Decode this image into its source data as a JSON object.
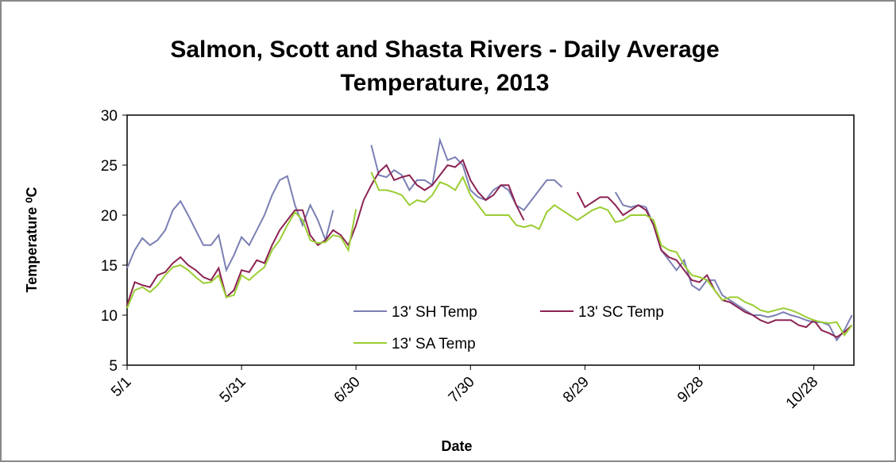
{
  "chart_data": {
    "type": "line",
    "title_lines": [
      "Salmon, Scott and Shasta Rivers - Daily Average",
      "Temperature, 2013"
    ],
    "x_label": "Date",
    "y_label": "Temperature ⁰C",
    "x": [
      0,
      2,
      4,
      6,
      8,
      10,
      12,
      14,
      16,
      18,
      20,
      22,
      24,
      26,
      28,
      30,
      32,
      34,
      36,
      38,
      40,
      42,
      44,
      46,
      48,
      50,
      52,
      54,
      56,
      58,
      60,
      62,
      64,
      66,
      68,
      70,
      72,
      74,
      76,
      78,
      80,
      82,
      84,
      86,
      88,
      90,
      92,
      94,
      96,
      98,
      100,
      102,
      104,
      106,
      108,
      110,
      112,
      114,
      116,
      118,
      120,
      122,
      124,
      126,
      128,
      130,
      132,
      134,
      136,
      138,
      140,
      142,
      144,
      146,
      148,
      150,
      152,
      154,
      156,
      158,
      160,
      162,
      164,
      166,
      168,
      170,
      172,
      174,
      176,
      178,
      180,
      182,
      184,
      186,
      188,
      190
    ],
    "xlim": [
      0,
      190.5
    ],
    "xticks": [
      {
        "value": 0,
        "label": "5/1"
      },
      {
        "value": 30,
        "label": "5/31"
      },
      {
        "value": 60,
        "label": "6/30"
      },
      {
        "value": 90,
        "label": "7/30"
      },
      {
        "value": 120,
        "label": "8/29"
      },
      {
        "value": 150,
        "label": "9/28"
      },
      {
        "value": 180,
        "label": "10/28"
      }
    ],
    "ylim": [
      5,
      30
    ],
    "yticks": [
      5,
      10,
      15,
      20,
      25,
      30
    ],
    "grid": false,
    "series": [
      {
        "name": "13' SH Temp",
        "color": "#7b7fb3",
        "values": [
          14.7,
          16.5,
          17.7,
          17,
          17.5,
          18.5,
          20.5,
          21.4,
          20,
          18.5,
          17,
          17,
          18,
          14.5,
          16,
          17.8,
          17,
          18.5,
          20,
          22,
          23.5,
          23.9,
          21,
          19,
          21,
          19.5,
          17.5,
          20.5,
          null,
          null,
          null,
          null,
          27,
          24,
          23.8,
          24.5,
          24,
          22.5,
          23.5,
          23.5,
          23,
          27.5,
          25.5,
          25.8,
          25,
          22.5,
          21.8,
          21.5,
          22.5,
          23,
          22.5,
          21,
          20.5,
          21.5,
          22.5,
          23.5,
          23.5,
          22.8,
          null,
          null,
          null,
          null,
          null,
          null,
          22.3,
          21,
          20.8,
          21,
          20.8,
          19,
          16.5,
          15.5,
          14.5,
          15.5,
          13,
          12.5,
          13.5,
          13.5,
          12,
          11.5,
          11,
          10.5,
          10,
          10,
          9.8,
          10,
          10.3,
          10,
          9.8,
          9.5,
          9.3,
          9.3,
          9,
          7.5,
          8.5,
          10
        ]
      },
      {
        "name": "13' SC Temp",
        "color": "#8b2252",
        "values": [
          11,
          13.3,
          13,
          12.8,
          14,
          14.3,
          15.2,
          15.8,
          15,
          14.5,
          13.8,
          13.5,
          14.7,
          11.8,
          12.5,
          14.5,
          14.3,
          15.5,
          15.2,
          17,
          18.5,
          19.5,
          20.5,
          20.5,
          18,
          17,
          17.5,
          18.5,
          18,
          17,
          19,
          21.5,
          23,
          24.3,
          25,
          23.5,
          23.8,
          24,
          23,
          22.5,
          23,
          24,
          25,
          24.8,
          25.5,
          23.5,
          22.3,
          21.5,
          22,
          23,
          23,
          21,
          19.5,
          null,
          null,
          null,
          null,
          null,
          null,
          22.3,
          20.8,
          21.3,
          21.8,
          21.8,
          21,
          20,
          20.5,
          21,
          20.5,
          19,
          16.5,
          15.8,
          15.5,
          14.5,
          13.5,
          13.3,
          14,
          12.5,
          11.5,
          11.3,
          10.8,
          10.3,
          10,
          9.5,
          9.2,
          9.5,
          9.5,
          9.5,
          9,
          8.8,
          9.5,
          8.5,
          8.2,
          7.8,
          8.3,
          9
        ]
      },
      {
        "name": "13' SA Temp",
        "color": "#9acd32",
        "values": [
          10.7,
          12.5,
          12.8,
          12.3,
          13,
          14,
          14.8,
          15,
          14.5,
          13.8,
          13.2,
          13.3,
          14,
          11.8,
          12,
          14,
          13.5,
          14.2,
          14.8,
          16.5,
          17.5,
          19,
          20.3,
          19.5,
          17.5,
          17.2,
          17.3,
          18,
          17.8,
          16.5,
          20.6,
          null,
          24.3,
          22.5,
          22.5,
          22.3,
          22,
          21,
          21.5,
          21.3,
          22,
          23.3,
          23,
          22.5,
          23.8,
          22,
          21,
          20,
          20,
          20,
          20,
          19,
          18.8,
          19,
          18.6,
          20.3,
          21,
          20.5,
          20,
          19.5,
          20,
          20.5,
          20.8,
          20.5,
          19.3,
          19.5,
          20,
          20,
          20,
          19.5,
          17,
          16.5,
          16.3,
          15,
          14,
          13.8,
          13.5,
          12.5,
          11.5,
          11.8,
          11.8,
          11.3,
          11,
          10.5,
          10.3,
          10.5,
          10.7,
          10.5,
          10.2,
          9.8,
          9.5,
          9.3,
          9.2,
          9.3,
          8,
          9
        ]
      }
    ]
  }
}
